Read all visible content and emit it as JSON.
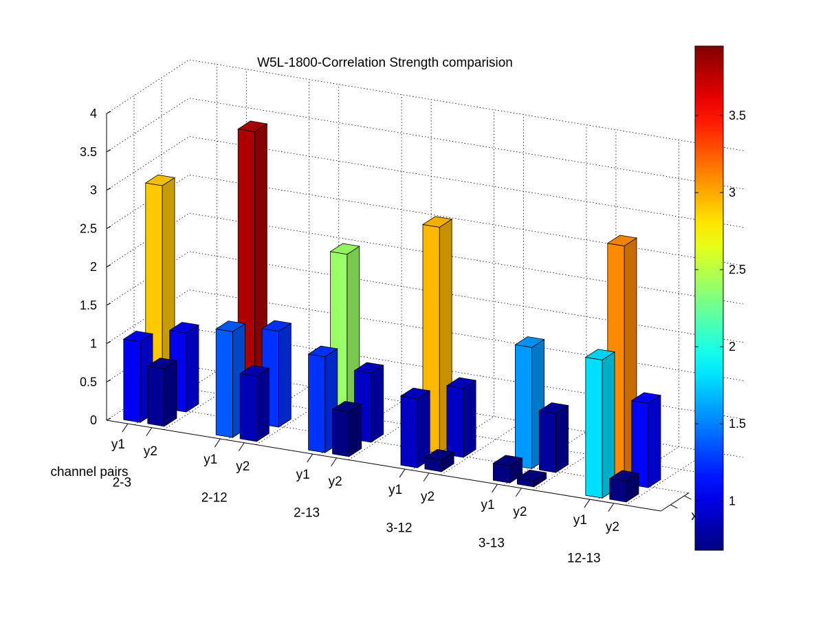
{
  "chart_data": {
    "type": "bar3d",
    "title": "W5L-1800-Correlation Strength comparision",
    "xlabel": "channel pairs",
    "zlim": [
      0,
      4
    ],
    "z_ticks": [
      "0",
      "0.5",
      "1",
      "1.5",
      "2",
      "2.5",
      "3",
      "3.5",
      "4"
    ],
    "categories": [
      "2-3",
      "2-12",
      "2-13",
      "3-12",
      "3-13",
      "12-13"
    ],
    "sub_labels": [
      "y1",
      "y2"
    ],
    "depth_labels": [
      "x1",
      "x2"
    ],
    "grid": true,
    "colormap": "jet",
    "colorbar_range": [
      0.68,
      3.95
    ],
    "colorbar_ticks": [
      "1",
      "1.5",
      "2",
      "2.5",
      "3",
      "3.5"
    ],
    "series": [
      {
        "name": "x1",
        "values": {
          "y1": [
            1.05,
            1.38,
            1.25,
            0.9,
            0.22,
            1.8
          ],
          "y2": [
            0.75,
            0.85,
            0.58,
            0.15,
            0.08,
            0.27
          ]
        }
      },
      {
        "name": "x2",
        "values": {
          "y1": [
            2.9,
            3.8,
            2.4,
            2.95,
            1.58,
            3.1
          ],
          "y2": [
            1.03,
            1.25,
            0.9,
            0.9,
            0.77,
            1.1
          ]
        }
      }
    ]
  }
}
